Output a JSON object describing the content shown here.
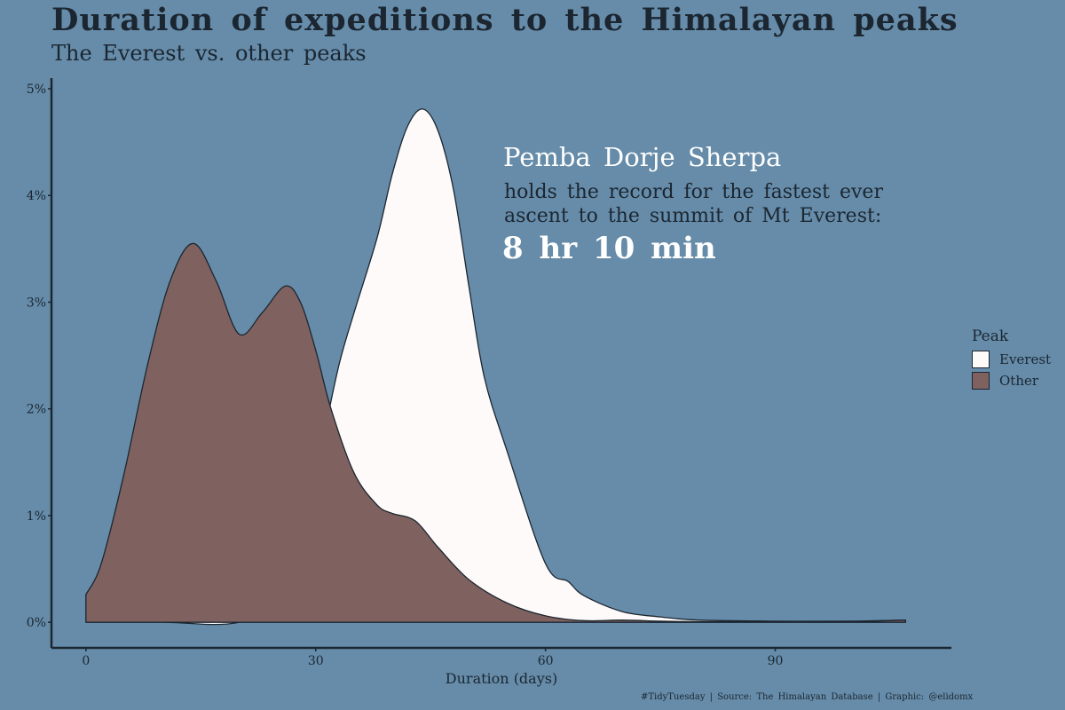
{
  "chart_data": {
    "type": "area",
    "title": "Duration of expeditions to the Himalayan peaks",
    "subtitle": "The Everest vs. other peaks",
    "xlabel": "Duration (days)",
    "ylabel": "",
    "xlim": [
      -4.5,
      113
    ],
    "ylim": [
      -0.24,
      5.1
    ],
    "x_ticks": [
      0,
      30,
      60,
      90
    ],
    "x_tick_labels": [
      "0",
      "30",
      "60",
      "90"
    ],
    "y_ticks": [
      0,
      1,
      2,
      3,
      4,
      5
    ],
    "y_tick_labels": [
      "0%",
      "1%",
      "2%",
      "3%",
      "4%",
      "5%"
    ],
    "grid": false,
    "legend": {
      "title": "Peak",
      "position": "right"
    },
    "series": [
      {
        "name": "Everest",
        "color": "#fffafa",
        "x": [
          0,
          10,
          20,
          28,
          30,
          31,
          33,
          35,
          38,
          40,
          42,
          44,
          46,
          48,
          50,
          52,
          55,
          60,
          63,
          65,
          70,
          75,
          80,
          90,
          100,
          107
        ],
        "y": [
          0,
          0,
          0,
          0.28,
          1.2,
          1.7,
          2.4,
          2.9,
          3.6,
          4.2,
          4.65,
          4.81,
          4.6,
          4.05,
          3.15,
          2.3,
          1.6,
          0.55,
          0.38,
          0.25,
          0.1,
          0.05,
          0.02,
          0.01,
          0.01,
          0.02
        ]
      },
      {
        "name": "Other",
        "color": "#7f625f",
        "x": [
          0,
          2,
          5,
          8,
          11,
          14,
          17,
          20,
          23,
          26,
          28,
          30,
          32,
          35,
          38,
          40,
          43,
          46,
          50,
          55,
          60,
          65,
          70,
          75,
          80,
          90,
          100,
          107
        ],
        "y": [
          0.26,
          0.55,
          1.4,
          2.4,
          3.2,
          3.55,
          3.2,
          2.7,
          2.9,
          3.15,
          3.0,
          2.55,
          2.0,
          1.4,
          1.1,
          1.02,
          0.95,
          0.7,
          0.4,
          0.18,
          0.06,
          0.015,
          0.02,
          0.01,
          0.005,
          0.005,
          0.005,
          0.02
        ]
      }
    ]
  },
  "annotation": {
    "name": "Pemba Dorje Sherpa",
    "line1": "holds the record for the fastest ever",
    "line2": "ascent to the summit of Mt Everest:",
    "record": "8 hr 10 min"
  },
  "caption": "#TidyTuesday  |  Source: The Himalayan Database  |  Graphic: @elidomx",
  "colors": {
    "background": "#668ca9",
    "ink": "#1b2631",
    "highlight": "#ffffff"
  }
}
